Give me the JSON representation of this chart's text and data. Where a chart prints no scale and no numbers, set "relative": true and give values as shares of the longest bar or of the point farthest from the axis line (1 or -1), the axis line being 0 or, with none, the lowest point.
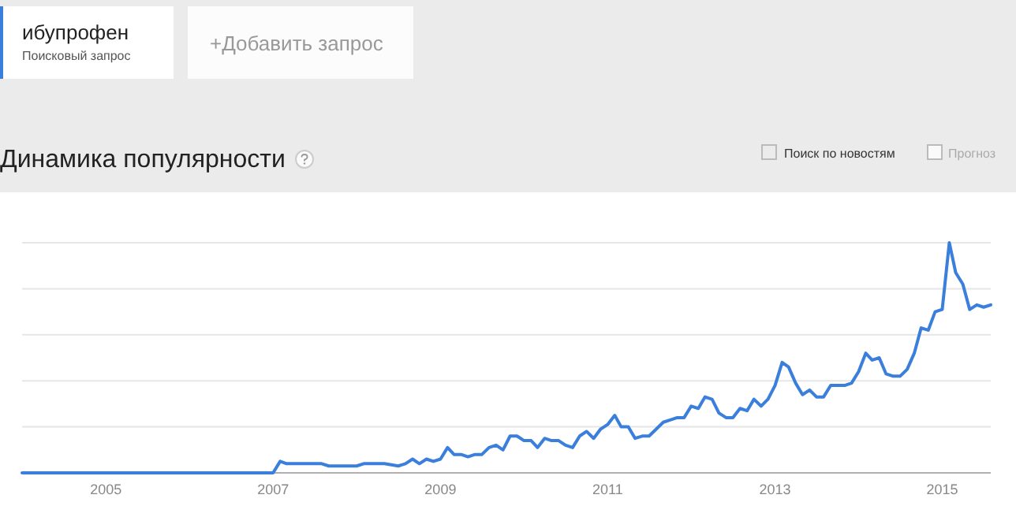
{
  "chart_data": {
    "type": "line",
    "title": "Динамика популярности",
    "relative": true,
    "grid": "y",
    "legend": "top left",
    "marker": "none",
    "line_style": "solid",
    "annotations": [
      "Поисковый запрос",
      "+Добавить запрос",
      "Поиск по новостям",
      "Прогноз"
    ],
    "xlim": [
      "2004-01",
      "2015-08"
    ],
    "xticks": [
      "2005",
      "2007",
      "2009",
      "2011",
      "2013",
      "2015"
    ],
    "series": [
      {
        "name": "ибупрофен",
        "color": "#3b7fdc",
        "x": [
          "2004-01",
          "2007-01",
          "2007-02",
          "2007-03",
          "2007-08",
          "2007-09",
          "2008-01",
          "2008-02",
          "2008-05",
          "2008-07",
          "2008-08",
          "2008-09",
          "2008-10",
          "2008-11",
          "2008-12",
          "2009-01",
          "2009-02",
          "2009-03",
          "2009-04",
          "2009-05",
          "2009-06",
          "2009-07",
          "2009-08",
          "2009-09",
          "2009-10",
          "2009-11",
          "2009-12",
          "2010-01",
          "2010-02",
          "2010-03",
          "2010-04",
          "2010-05",
          "2010-06",
          "2010-07",
          "2010-08",
          "2010-09",
          "2010-10",
          "2010-11",
          "2010-12",
          "2011-01",
          "2011-02",
          "2011-03",
          "2011-04",
          "2011-05",
          "2011-06",
          "2011-07",
          "2011-08",
          "2011-09",
          "2011-10",
          "2011-11",
          "2011-12",
          "2012-01",
          "2012-02",
          "2012-03",
          "2012-04",
          "2012-05",
          "2012-06",
          "2012-07",
          "2012-08",
          "2012-09",
          "2012-10",
          "2012-11",
          "2012-12",
          "2013-01",
          "2013-02",
          "2013-03",
          "2013-04",
          "2013-05",
          "2013-06",
          "2013-07",
          "2013-08",
          "2013-09",
          "2013-10",
          "2013-11",
          "2013-12",
          "2014-01",
          "2014-02",
          "2014-03",
          "2014-04",
          "2014-05",
          "2014-06",
          "2014-07",
          "2014-08",
          "2014-09",
          "2014-10",
          "2014-11",
          "2014-12",
          "2015-01",
          "2015-02",
          "2015-03",
          "2015-04",
          "2015-05",
          "2015-06",
          "2015-07",
          "2015-08"
        ],
        "values": [
          0,
          0,
          0.05,
          0.04,
          0.04,
          0.03,
          0.03,
          0.04,
          0.04,
          0.03,
          0.04,
          0.06,
          0.04,
          0.06,
          0.05,
          0.06,
          0.11,
          0.08,
          0.08,
          0.07,
          0.08,
          0.08,
          0.11,
          0.12,
          0.1,
          0.16,
          0.16,
          0.14,
          0.14,
          0.11,
          0.15,
          0.14,
          0.14,
          0.12,
          0.11,
          0.16,
          0.18,
          0.15,
          0.19,
          0.21,
          0.25,
          0.2,
          0.2,
          0.15,
          0.16,
          0.16,
          0.19,
          0.22,
          0.23,
          0.24,
          0.24,
          0.29,
          0.28,
          0.33,
          0.32,
          0.26,
          0.24,
          0.24,
          0.28,
          0.27,
          0.32,
          0.29,
          0.32,
          0.38,
          0.48,
          0.46,
          0.39,
          0.34,
          0.36,
          0.33,
          0.33,
          0.38,
          0.38,
          0.38,
          0.39,
          0.44,
          0.52,
          0.49,
          0.5,
          0.43,
          0.42,
          0.42,
          0.45,
          0.52,
          0.63,
          0.62,
          0.7,
          0.71,
          1,
          0.87,
          0.82,
          0.71,
          0.73,
          0.72,
          0.73
        ]
      }
    ]
  }
}
